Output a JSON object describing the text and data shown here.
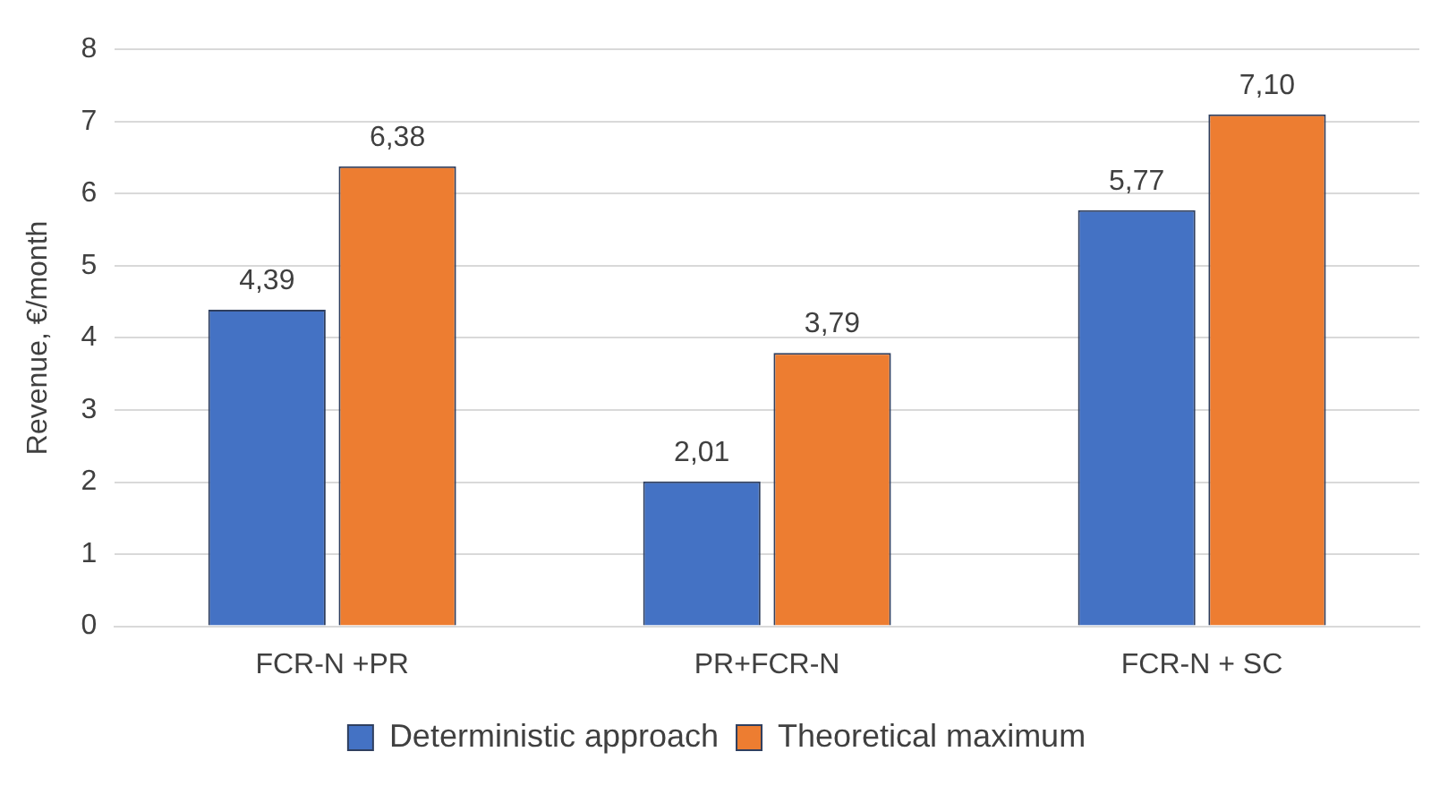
{
  "chart_data": {
    "type": "bar",
    "ylabel": "Revenue, €/month",
    "categories": [
      "FCR-N +PR",
      "PR+FCR-N",
      "FCR-N + SC"
    ],
    "series": [
      {
        "name": "Deterministic approach",
        "color": "#4472c4",
        "values": [
          4.39,
          2.01,
          5.77
        ],
        "value_labels": [
          "4,39",
          "2,01",
          "5,77"
        ]
      },
      {
        "name": "Theoretical maximum",
        "color": "#ed7d31",
        "values": [
          6.38,
          3.79,
          7.1
        ],
        "value_labels": [
          "6,38",
          "3,79",
          "7,10"
        ]
      }
    ],
    "ylim": [
      0,
      8
    ],
    "yticks": [
      0,
      1,
      2,
      3,
      4,
      5,
      6,
      7,
      8
    ],
    "grid": "y",
    "legend": "bottom"
  }
}
